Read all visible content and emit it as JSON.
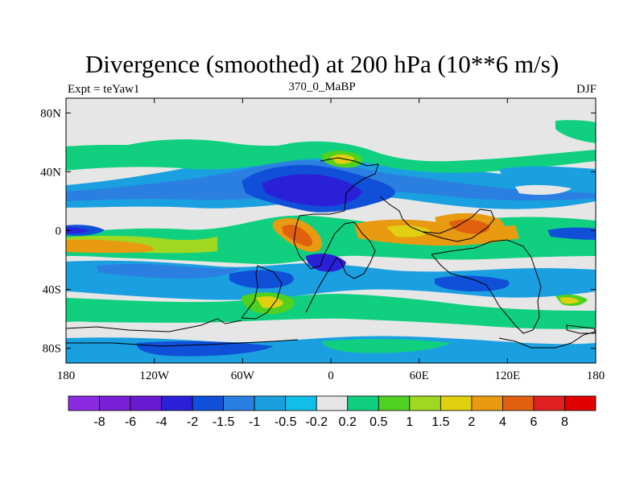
{
  "chart_data": {
    "type": "heatmap",
    "title": "Divergence (smoothed) at 200 hPa (10**6 m/s)",
    "subtitle_left": "Expt = teYaw1",
    "subtitle_center": "370_0_MaBP",
    "subtitle_right": "DJF",
    "x_ticks": [
      "180",
      "120W",
      "60W",
      "0",
      "60E",
      "120E",
      "180"
    ],
    "y_ticks": [
      "80N",
      "40N",
      "0",
      "40S",
      "80S"
    ],
    "xlim": [
      -180,
      180
    ],
    "ylim": [
      -90,
      90
    ],
    "colorbar": {
      "labels": [
        "-8",
        "-6",
        "-4",
        "-2",
        "-1.5",
        "-1",
        "-0.5",
        "-0.2",
        "0.2",
        "0.5",
        "1",
        "1.5",
        "2",
        "4",
        "6",
        "8"
      ],
      "colors": [
        "#8a2be2",
        "#7a1fd8",
        "#6a1ad0",
        "#2a20d8",
        "#1050d8",
        "#2a7fe0",
        "#1aa0e0",
        "#10c0e8",
        "#e6e6e6",
        "#10d080",
        "#50d020",
        "#a0d820",
        "#e0d010",
        "#e89a10",
        "#e06010",
        "#e02020",
        "#e00000"
      ]
    },
    "field_levels_note": "filled contours of divergence; see colorbar"
  }
}
